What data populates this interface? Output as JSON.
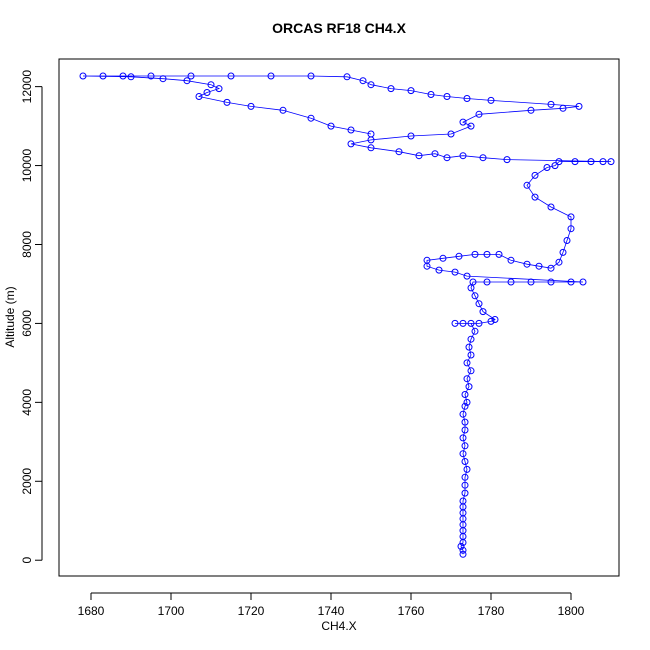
{
  "chart_data": {
    "type": "scatter",
    "title": "ORCAS RF18 CH4.X",
    "xlabel": "CH4.X",
    "ylabel": "Altitude (m)",
    "xlim": [
      1672,
      1812
    ],
    "ylim": [
      -400,
      12700
    ],
    "x_ticks": [
      1680,
      1700,
      1720,
      1740,
      1760,
      1780,
      1800
    ],
    "y_ticks": [
      0,
      2000,
      4000,
      6000,
      8000,
      10000,
      12000
    ],
    "grid": false,
    "legend": "none",
    "colors": {
      "series": "#0000ff",
      "axes": "#000000"
    },
    "series": [
      {
        "marker": "open-circle",
        "line": true,
        "points": [
          [
            1773,
            150
          ],
          [
            1773,
            250
          ],
          [
            1772.5,
            350
          ],
          [
            1773,
            450
          ],
          [
            1773,
            600
          ],
          [
            1773,
            750
          ],
          [
            1773,
            900
          ],
          [
            1773,
            1050
          ],
          [
            1773,
            1200
          ],
          [
            1773,
            1350
          ],
          [
            1773,
            1500
          ],
          [
            1773.5,
            1700
          ],
          [
            1773.5,
            1900
          ],
          [
            1773.5,
            2100
          ],
          [
            1774,
            2300
          ],
          [
            1773.5,
            2500
          ],
          [
            1773,
            2700
          ],
          [
            1773.5,
            2900
          ],
          [
            1773,
            3100
          ],
          [
            1773.5,
            3300
          ],
          [
            1773.5,
            3500
          ],
          [
            1773,
            3700
          ],
          [
            1773.5,
            3900
          ],
          [
            1774,
            4000
          ],
          [
            1773.5,
            4200
          ],
          [
            1774.5,
            4400
          ],
          [
            1774,
            4600
          ],
          [
            1775,
            4800
          ],
          [
            1774,
            5000
          ],
          [
            1775,
            5200
          ],
          [
            1774.5,
            5400
          ],
          [
            1775,
            5600
          ],
          [
            1776,
            5800
          ],
          [
            1775,
            6000
          ],
          [
            1773,
            6000
          ],
          [
            1771,
            6000
          ],
          [
            1777,
            6000
          ],
          [
            1780,
            6050
          ],
          [
            1781,
            6100
          ],
          [
            1778,
            6300
          ],
          [
            1777,
            6500
          ],
          [
            1776,
            6700
          ],
          [
            1775,
            6900
          ],
          [
            1775.5,
            7050
          ],
          [
            1779,
            7050
          ],
          [
            1785,
            7050
          ],
          [
            1790,
            7050
          ],
          [
            1795,
            7050
          ],
          [
            1800,
            7050
          ],
          [
            1803,
            7050
          ],
          [
            1774,
            7200
          ],
          [
            1771,
            7300
          ],
          [
            1767,
            7350
          ],
          [
            1764,
            7450
          ],
          [
            1764,
            7600
          ],
          [
            1768,
            7650
          ],
          [
            1772,
            7700
          ],
          [
            1776,
            7750
          ],
          [
            1779,
            7750
          ],
          [
            1782,
            7750
          ],
          [
            1785,
            7600
          ],
          [
            1789,
            7500
          ],
          [
            1792,
            7450
          ],
          [
            1795,
            7400
          ],
          [
            1797,
            7550
          ],
          [
            1798,
            7800
          ],
          [
            1799,
            8100
          ],
          [
            1800,
            8400
          ],
          [
            1800,
            8700
          ],
          [
            1795,
            8950
          ],
          [
            1791,
            9200
          ],
          [
            1789,
            9500
          ],
          [
            1791,
            9750
          ],
          [
            1794,
            9950
          ],
          [
            1796,
            10000
          ],
          [
            1797,
            10100
          ],
          [
            1801,
            10100
          ],
          [
            1805,
            10100
          ],
          [
            1808,
            10100
          ],
          [
            1810,
            10100
          ],
          [
            1784,
            10150
          ],
          [
            1778,
            10200
          ],
          [
            1773,
            10250
          ],
          [
            1769,
            10200
          ],
          [
            1766,
            10300
          ],
          [
            1762,
            10250
          ],
          [
            1757,
            10350
          ],
          [
            1750,
            10450
          ],
          [
            1745,
            10550
          ],
          [
            1750,
            10650
          ],
          [
            1760,
            10750
          ],
          [
            1770,
            10800
          ],
          [
            1775,
            11000
          ],
          [
            1773,
            11100
          ],
          [
            1777,
            11300
          ],
          [
            1790,
            11400
          ],
          [
            1798,
            11450
          ],
          [
            1802,
            11500
          ],
          [
            1795,
            11550
          ],
          [
            1780,
            11650
          ],
          [
            1774,
            11700
          ],
          [
            1769,
            11750
          ],
          [
            1765,
            11800
          ],
          [
            1760,
            11900
          ],
          [
            1755,
            11950
          ],
          [
            1750,
            12050
          ],
          [
            1748,
            12150
          ],
          [
            1744,
            12250
          ],
          [
            1735,
            12270
          ],
          [
            1725,
            12270
          ],
          [
            1715,
            12270
          ],
          [
            1705,
            12270
          ],
          [
            1695,
            12270
          ],
          [
            1688,
            12270
          ],
          [
            1683,
            12270
          ],
          [
            1678,
            12270
          ],
          [
            1690,
            12250
          ],
          [
            1698,
            12200
          ],
          [
            1704,
            12150
          ],
          [
            1710,
            12050
          ],
          [
            1712,
            11950
          ],
          [
            1709,
            11850
          ],
          [
            1707,
            11750
          ],
          [
            1714,
            11600
          ],
          [
            1720,
            11500
          ],
          [
            1728,
            11400
          ],
          [
            1735,
            11200
          ],
          [
            1740,
            11000
          ],
          [
            1745,
            10900
          ],
          [
            1750,
            10800
          ]
        ]
      }
    ]
  }
}
